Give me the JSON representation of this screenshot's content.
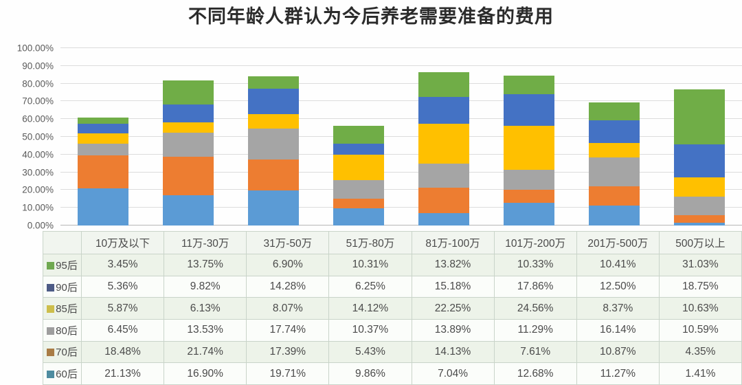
{
  "title": "不同年龄人群认为今后养老需要准备的费用",
  "y_axis": {
    "tick_labels": [
      "100.00%",
      "90.00%",
      "80.00%",
      "70.00%",
      "60.00%",
      "50.00%",
      "40.00%",
      "30.00%",
      "20.00%",
      "10.00%",
      "0.00%"
    ],
    "min": 0,
    "max": 100,
    "step": 10
  },
  "chart_data": {
    "type": "bar",
    "stacked": true,
    "title": "不同年龄人群认为今后养老需要准备的费用",
    "categories": [
      "10万及以下",
      "11万-30万",
      "31万-50万",
      "51万-80万",
      "81万-100万",
      "101万-200万",
      "201万-500万",
      "500万以上"
    ],
    "xlabel": "",
    "ylabel": "",
    "ylim": [
      0,
      100
    ],
    "grid": true,
    "legend_position": "table-left-column",
    "stack_order_bottom_to_top": [
      "post-60",
      "post-70",
      "post-80",
      "post-85",
      "post-90",
      "post-95"
    ],
    "series": [
      {
        "key": "post-95",
        "name": "95后",
        "color": "#70AD47",
        "swatch_color": "#6FA850",
        "values": [
          3.45,
          13.75,
          6.9,
          10.31,
          13.82,
          10.33,
          10.41,
          31.03
        ],
        "values_display": [
          "3.45%",
          "13.75%",
          "6.90%",
          "10.31%",
          "13.82%",
          "10.33%",
          "10.41%",
          "31.03%"
        ]
      },
      {
        "key": "post-90",
        "name": "90后",
        "color": "#4472C4",
        "swatch_color": "#4D5B86",
        "values": [
          5.36,
          9.82,
          14.28,
          6.25,
          15.18,
          17.86,
          12.5,
          18.75
        ],
        "values_display": [
          "5.36%",
          "9.82%",
          "14.28%",
          "6.25%",
          "15.18%",
          "17.86%",
          "12.50%",
          "18.75%"
        ]
      },
      {
        "key": "post-85",
        "name": "85后",
        "color": "#FFC000",
        "swatch_color": "#CDBE4B",
        "values": [
          5.87,
          6.13,
          8.07,
          14.12,
          22.25,
          24.56,
          8.37,
          10.63
        ],
        "values_display": [
          "5.87%",
          "6.13%",
          "8.07%",
          "14.12%",
          "22.25%",
          "24.56%",
          "8.37%",
          "10.63%"
        ]
      },
      {
        "key": "post-80",
        "name": "80后",
        "color": "#A5A5A5",
        "swatch_color": "#9E9E9E",
        "values": [
          6.45,
          13.53,
          17.74,
          10.37,
          13.89,
          11.29,
          16.14,
          10.59
        ],
        "values_display": [
          "6.45%",
          "13.53%",
          "17.74%",
          "10.37%",
          "13.89%",
          "11.29%",
          "16.14%",
          "10.59%"
        ]
      },
      {
        "key": "post-70",
        "name": "70后",
        "color": "#ED7D31",
        "swatch_color": "#A97C45",
        "values": [
          18.48,
          21.74,
          17.39,
          5.43,
          14.13,
          7.61,
          10.87,
          4.35
        ],
        "values_display": [
          "18.48%",
          "21.74%",
          "17.39%",
          "5.43%",
          "14.13%",
          "7.61%",
          "10.87%",
          "4.35%"
        ]
      },
      {
        "key": "post-60",
        "name": "60后",
        "color": "#5B9BD5",
        "swatch_color": "#4E8CA0",
        "values": [
          21.13,
          16.9,
          19.71,
          9.86,
          7.04,
          12.68,
          11.27,
          1.41
        ],
        "values_display": [
          "21.13%",
          "16.90%",
          "19.71%",
          "9.86%",
          "7.04%",
          "12.68%",
          "11.27%",
          "1.41%"
        ]
      }
    ]
  }
}
